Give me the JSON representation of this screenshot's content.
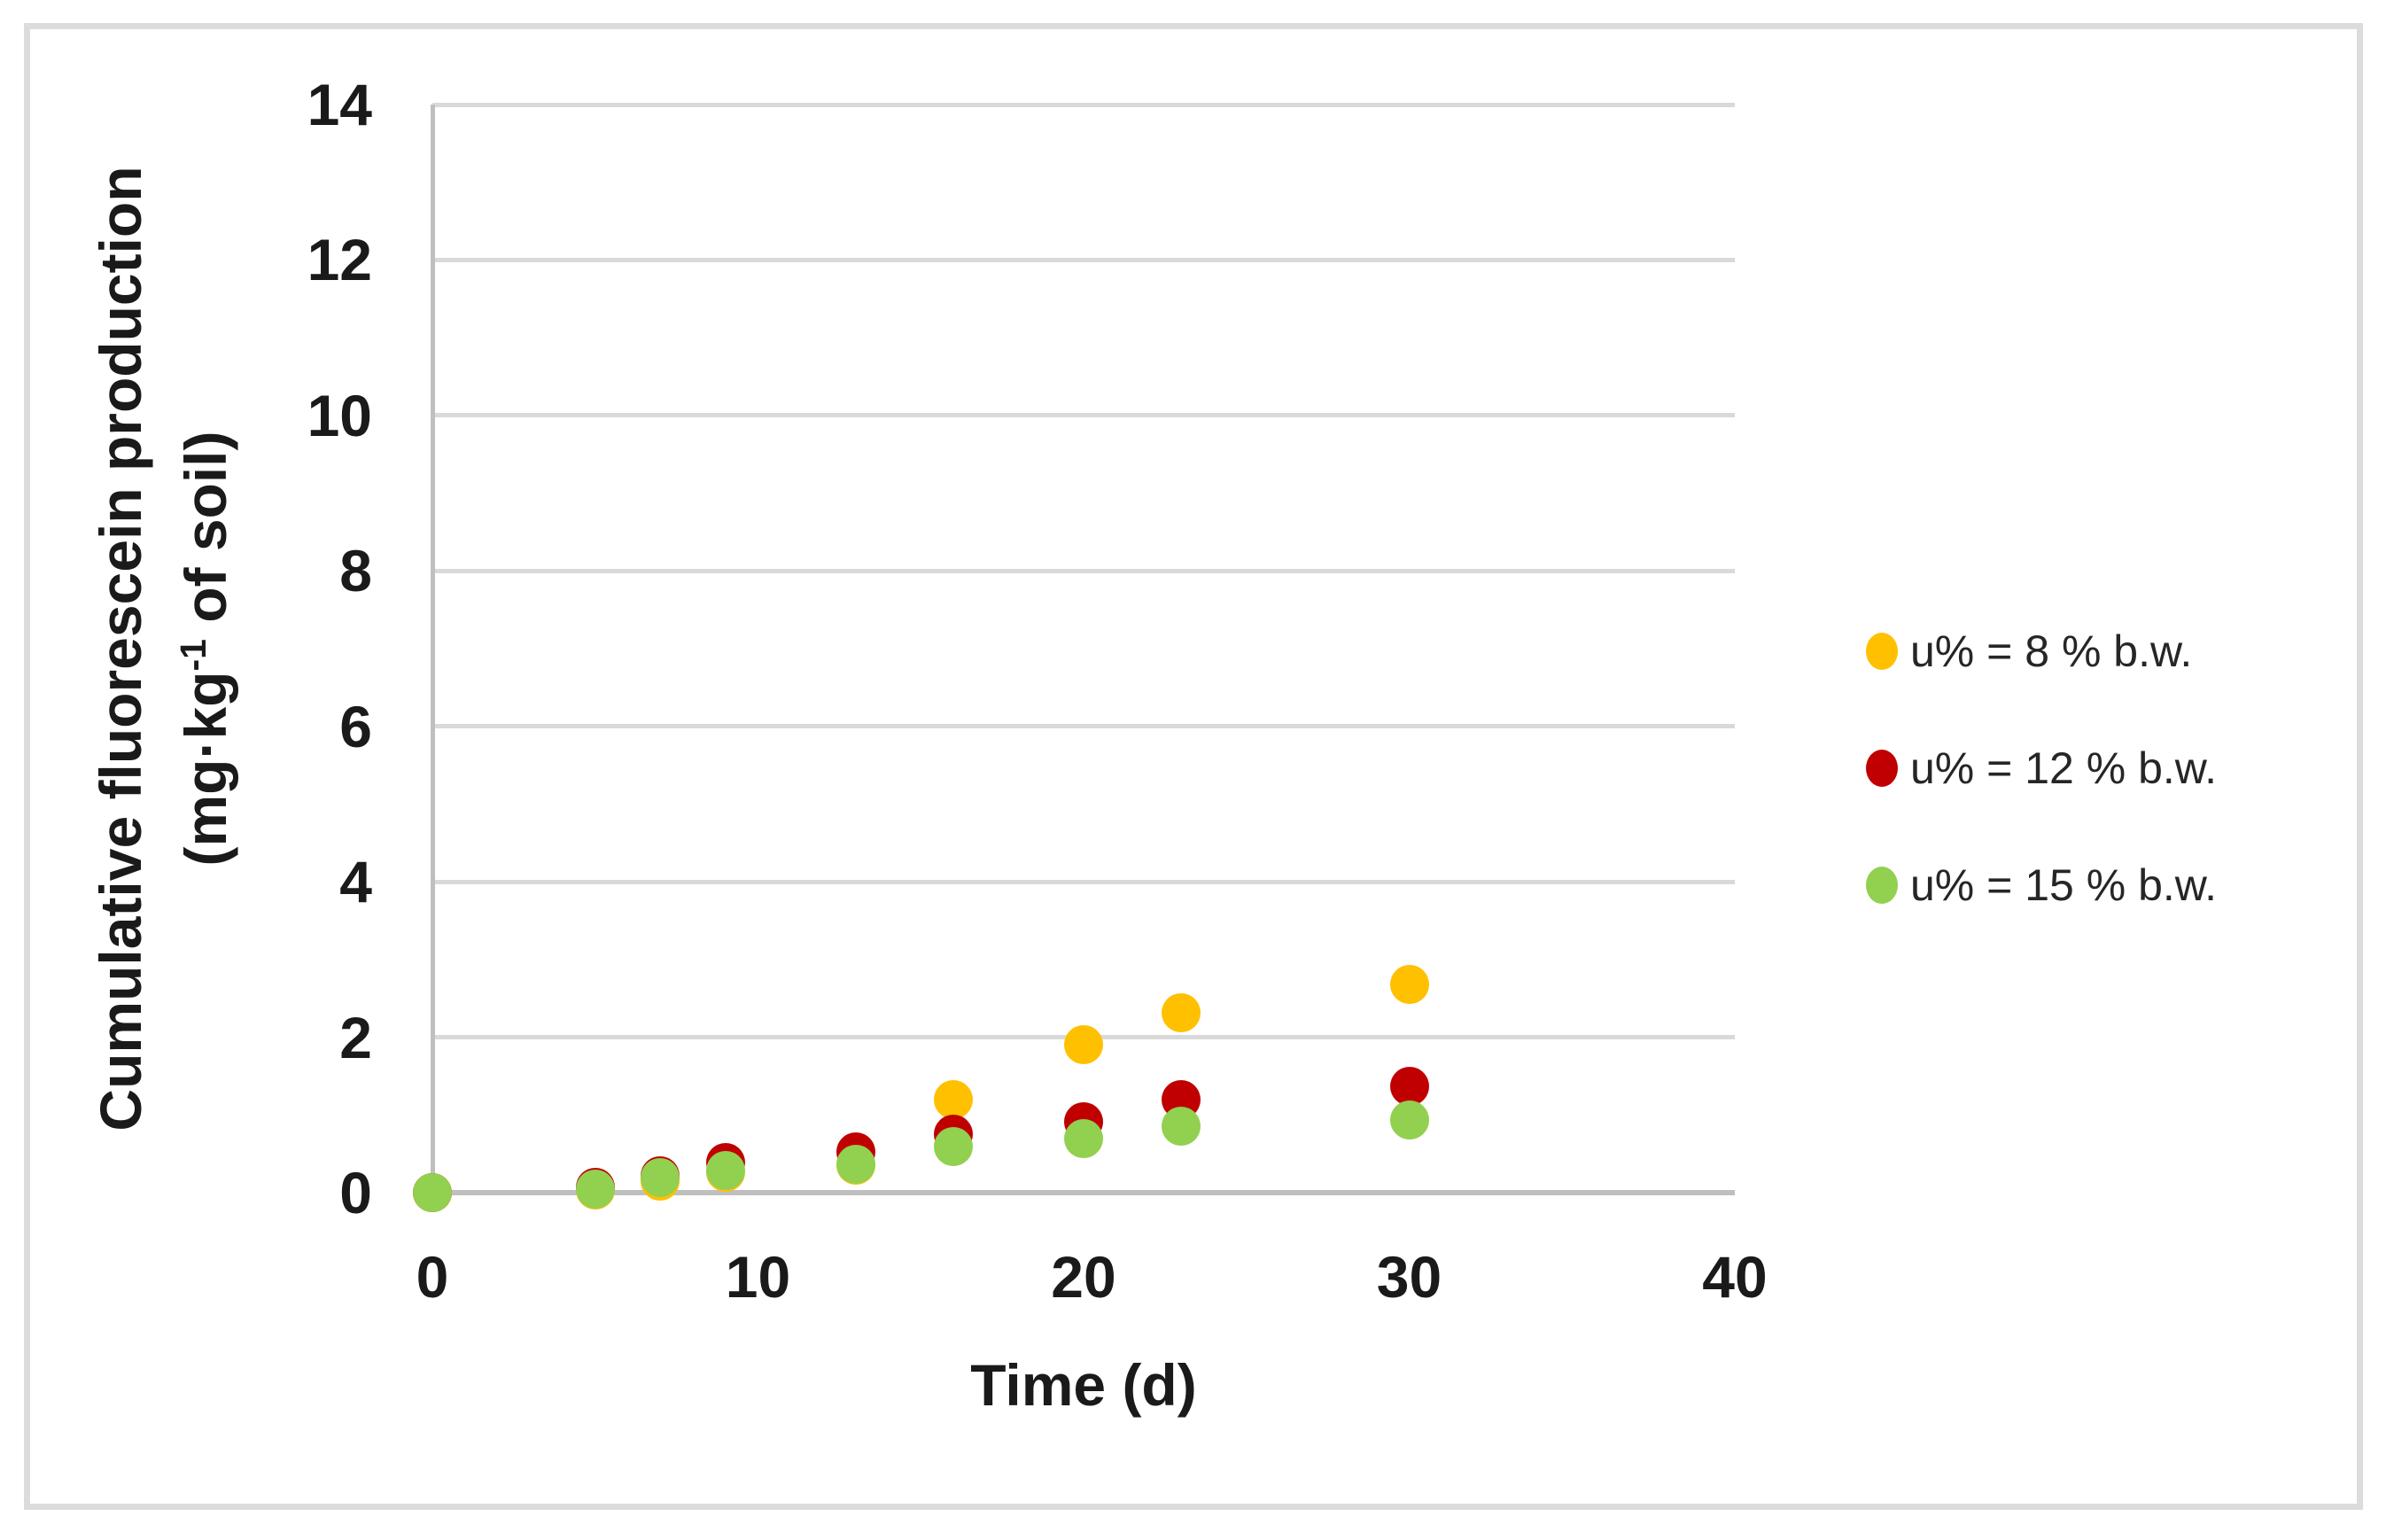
{
  "figure": {
    "background": "#FFFFFF",
    "border_color": "#DCDCDC"
  },
  "chart_data": {
    "type": "scatter",
    "title": "",
    "xlabel": "Time (d)",
    "ylabel": {
      "line1": "Cumulative fluorescein production",
      "line2_pre": "(mg·kg",
      "line2_sup": "-1",
      "line2_post": " of soil)"
    },
    "xlim": [
      0,
      40
    ],
    "ylim": [
      0,
      14
    ],
    "xticks": [
      0,
      10,
      20,
      30,
      40
    ],
    "yticks": [
      0,
      2,
      4,
      6,
      8,
      10,
      12,
      14
    ],
    "grid": "horizontal-major",
    "legend_position": "right-middle",
    "x_days": [
      0,
      5,
      7,
      9,
      13,
      16,
      20,
      23,
      30
    ],
    "series": [
      {
        "name": "u% = 8 % b.w.",
        "color": "#FFC000",
        "values": [
          0,
          0.03,
          0.15,
          0.26,
          0.35,
          1.2,
          1.9,
          2.31,
          2.68
        ]
      },
      {
        "name": "u% = 12 % b.w.",
        "color": "#C00000",
        "values": [
          0,
          0.07,
          0.22,
          0.39,
          0.53,
          0.75,
          0.91,
          1.2,
          1.37
        ]
      },
      {
        "name": "u% = 15 % b.w.",
        "color": "#92D050",
        "values": [
          0,
          0.05,
          0.19,
          0.29,
          0.37,
          0.59,
          0.69,
          0.85,
          0.93
        ]
      }
    ],
    "colors": {
      "gridline": "#D9D9D9",
      "axis": "#BFBFBF",
      "text": "#1A1A1A"
    }
  }
}
